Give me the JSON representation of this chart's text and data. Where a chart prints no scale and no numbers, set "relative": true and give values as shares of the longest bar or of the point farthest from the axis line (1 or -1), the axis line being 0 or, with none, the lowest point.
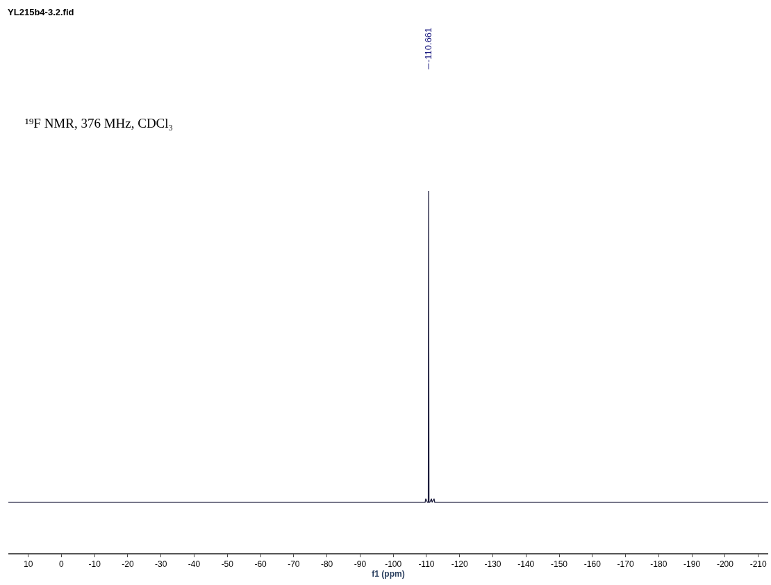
{
  "chart_data": {
    "type": "line",
    "title": "YL215b4-3.2.fid",
    "xlabel": "f1 (ppm)",
    "relative": true,
    "x": [
      16,
      -105,
      -109.6,
      -109.8,
      -110.3,
      -110.55,
      -110.661,
      -110.77,
      -111.0,
      -111.5,
      -111.7,
      -112.3,
      -112.5,
      -115,
      -213
    ],
    "series": [
      {
        "color": "#1c1c3c",
        "values": [
          0.14,
          0.14,
          0.14,
          0.15,
          0.14,
          0.14,
          1,
          0.14,
          0.14,
          0.15,
          0.14,
          0.15,
          0.14,
          0.14,
          0.14
        ]
      }
    ],
    "xlim": [
      16,
      -213
    ],
    "xticks": [
      10,
      0,
      -10,
      -20,
      -30,
      -40,
      -50,
      -60,
      -70,
      -80,
      -90,
      -100,
      -110,
      -120,
      -130,
      -140,
      -150,
      -160,
      -170,
      -180,
      -190,
      -200,
      -210
    ],
    "annotations": [
      "¹⁹F NMR, 376 MHz, CDCl₃",
      {
        "text": "-110.661",
        "x": -110.661,
        "y": 1
      }
    ],
    "marker": "none",
    "line_style": "solid"
  }
}
